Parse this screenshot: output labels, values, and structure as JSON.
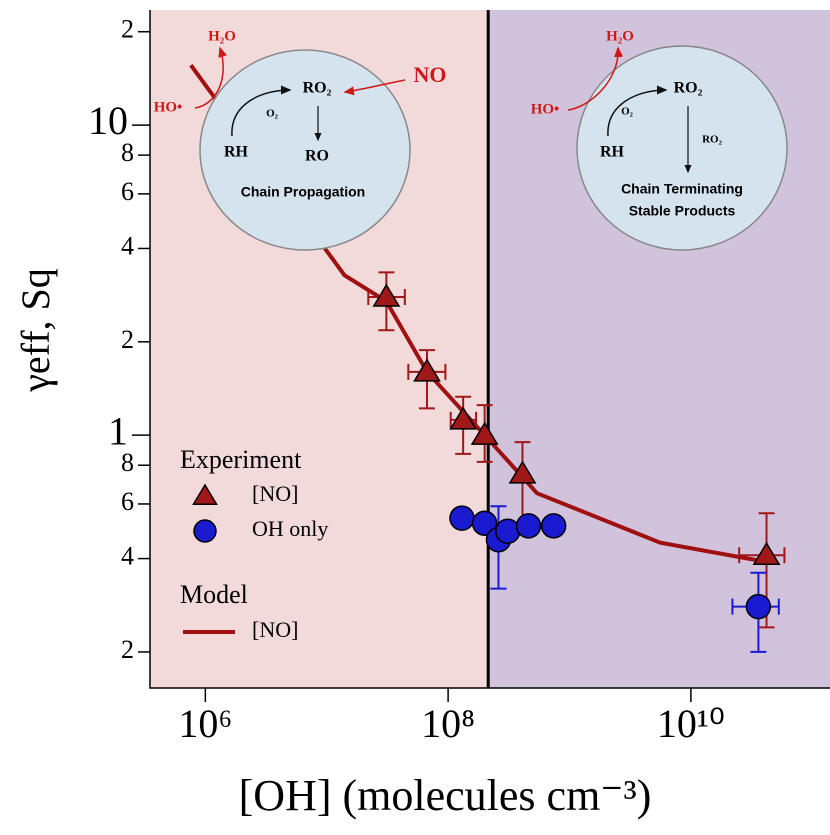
{
  "chart_data": {
    "type": "scatter",
    "x_label": "[OH] (molecules cm⁻³)",
    "y_label": "γeff, Sq",
    "xscale": "log",
    "yscale": "log",
    "xlim": [
      350000,
      140000000000
    ],
    "ylim": [
      0.153,
      23.5
    ],
    "xticks": [
      {
        "value": 1000000,
        "label": "10⁶"
      },
      {
        "value": 100000000,
        "label": "10⁸"
      },
      {
        "value": 10000000000,
        "label": "10¹⁰"
      }
    ],
    "yticks": [
      {
        "value": 20,
        "label": "2"
      },
      10,
      8,
      6,
      4,
      2,
      1,
      {
        "value": 0.8,
        "label": "8"
      },
      {
        "value": 0.6,
        "label": "6"
      },
      {
        "value": 0.4,
        "label": "4"
      },
      {
        "value": 0.2,
        "label": "2"
      }
    ],
    "divider_x": 214000000,
    "region_colors": [
      "#f2dada",
      "#d2c3dc"
    ],
    "legend_groups": [
      "Experiment",
      "Model"
    ],
    "series": [
      {
        "name": "[NO]",
        "marker": "triangle",
        "color": "#a01818",
        "error_color": "#a01818",
        "group": 0,
        "x": [
          31000000,
          67000000,
          133000000,
          200000000,
          410000000,
          42000000000
        ],
        "values": [
          2.79,
          1.6,
          1.12,
          1.0,
          0.75,
          0.41
        ],
        "y_lower": [
          2.18,
          1.22,
          0.87,
          0.82,
          0.49,
          0.24
        ],
        "y_upper": [
          3.35,
          1.88,
          1.33,
          1.25,
          0.95,
          0.56
        ],
        "x_lower": [
          22000000,
          47000000,
          105000000,
          null,
          null,
          25000000000
        ],
        "x_upper": [
          44000000,
          95000000,
          170000000,
          null,
          null,
          59000000000
        ]
      },
      {
        "name": "OH only",
        "marker": "circle",
        "color": "#1a1ad0",
        "error_color": "#1a1ad0",
        "group": 0,
        "x": [
          130000000,
          200000000,
          260000000,
          310000000,
          460000000,
          740000000,
          36000000000
        ],
        "values": [
          0.54,
          0.52,
          0.46,
          0.49,
          0.51,
          0.51,
          0.28
        ],
        "y_lower": [
          null,
          null,
          0.32,
          null,
          null,
          null,
          0.2
        ],
        "y_upper": [
          null,
          null,
          0.59,
          null,
          null,
          null,
          0.36
        ],
        "x_lower": [
          null,
          null,
          null,
          null,
          null,
          null,
          22000000000
        ],
        "x_upper": [
          null,
          null,
          null,
          null,
          null,
          null,
          53000000000
        ]
      },
      {
        "name": "[NO]",
        "marker": "line",
        "color": "#a01010",
        "group": 1,
        "x": [
          760000,
          14000000,
          31000000,
          67000000,
          200000000,
          540000000,
          5600000000,
          42000000000
        ],
        "values": [
          15.6,
          3.28,
          2.7,
          1.6,
          1.0,
          0.65,
          0.45,
          0.39
        ]
      }
    ],
    "annotations": [
      "H₂O",
      "HO•",
      "NO",
      "O₂",
      "RO₂",
      "RH",
      "RO",
      "Chain Propagation",
      "H₂O",
      "HO•",
      "O₂",
      "RO₂",
      "RO₂",
      "RH",
      "Chain Terminating",
      "Stable Products"
    ]
  }
}
